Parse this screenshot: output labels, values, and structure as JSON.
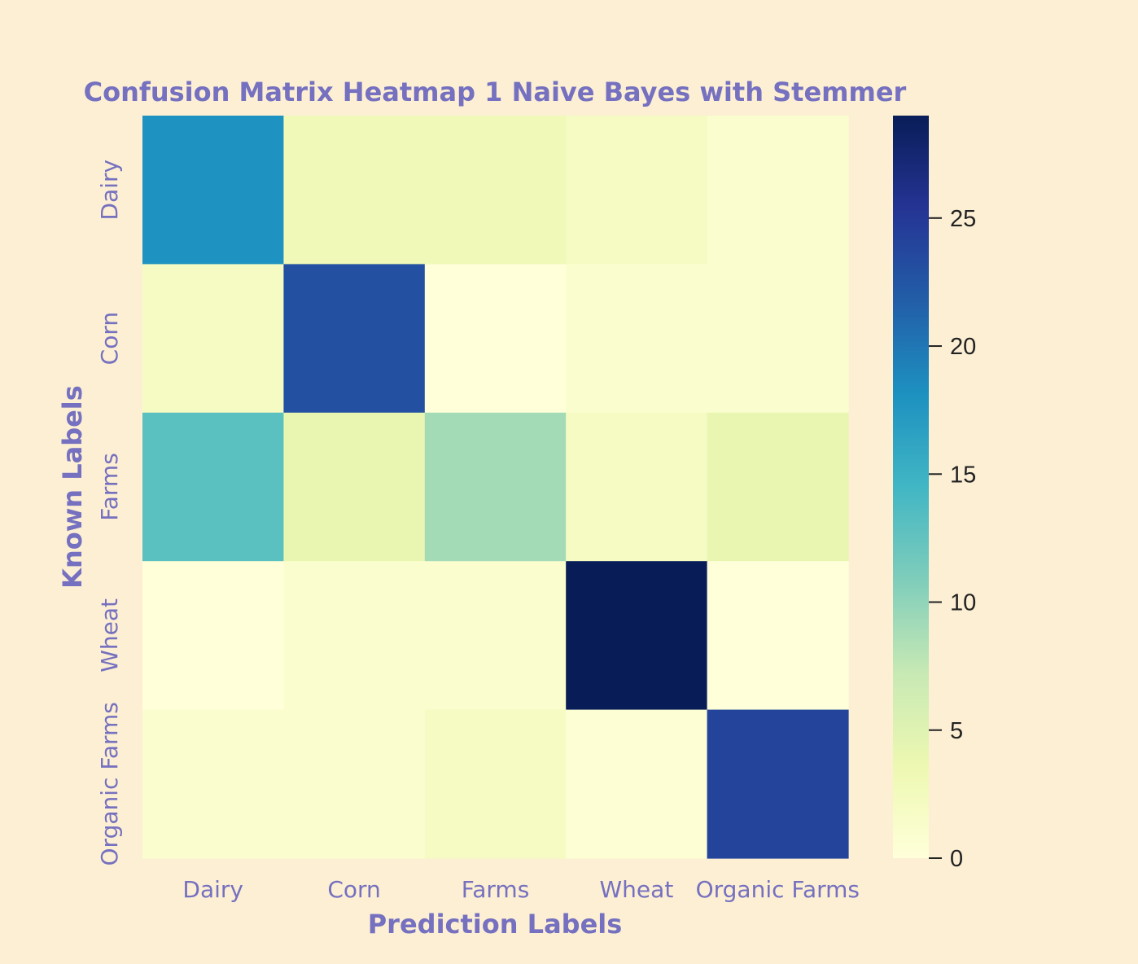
{
  "chart_data": {
    "type": "heatmap",
    "title": "Confusion Matrix Heatmap 1 Naive Bayes with Stemmer",
    "xlabel": "Prediction Labels",
    "ylabel": "Known Labels",
    "x_categories": [
      "Dairy",
      "Corn",
      "Farms",
      "Wheat",
      "Organic Farms"
    ],
    "y_categories": [
      "Dairy",
      "Corn",
      "Farms",
      "Wheat",
      "Organic Farms"
    ],
    "values": [
      [
        18,
        3,
        3,
        2,
        1
      ],
      [
        2,
        23,
        0,
        1,
        1
      ],
      [
        13,
        4,
        9,
        2,
        4
      ],
      [
        0,
        1,
        1,
        29,
        0
      ],
      [
        1,
        1,
        2,
        0.5,
        24
      ]
    ],
    "colormap": "YlGnBu",
    "vmin": 0,
    "vmax": 29,
    "colorbar_ticks": [
      0,
      5,
      10,
      15,
      20,
      25
    ],
    "colors": {
      "background": "#fcefd4",
      "text_accent": "#7570bf",
      "colorbar_tick_text": "#222222"
    }
  }
}
